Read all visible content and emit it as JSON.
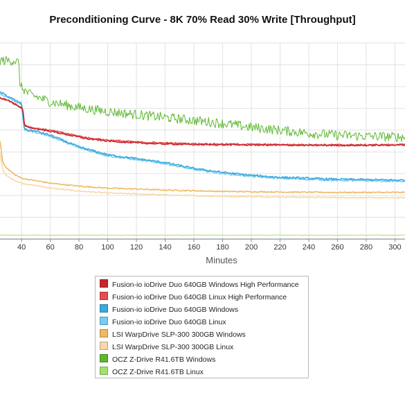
{
  "chart_data": {
    "type": "line",
    "title": "Preconditioning Curve - 8K 70% Read 30% Write [Throughput]",
    "xlabel": "Minutes",
    "ylabel": "",
    "xlim": [
      25,
      307
    ],
    "ylim": [
      0,
      100
    ],
    "x_ticks": [
      "40",
      "60",
      "80",
      "100",
      "120",
      "140",
      "160",
      "180",
      "200",
      "220",
      "240",
      "260",
      "280",
      "300"
    ],
    "grid": true,
    "legend_position": "bottom",
    "series": [
      {
        "name": "Fusion-io ioDrive Duo 640GB Windows High Performance",
        "color": "#c8282d",
        "noise": 0.4,
        "points": [
          [
            25,
            72
          ],
          [
            30,
            71
          ],
          [
            35,
            69
          ],
          [
            40,
            67
          ],
          [
            41,
            66
          ],
          [
            42,
            58
          ],
          [
            45,
            57
          ],
          [
            60,
            55
          ],
          [
            80,
            52
          ],
          [
            87,
            51
          ],
          [
            100,
            50
          ],
          [
            120,
            49
          ],
          [
            140,
            48.5
          ],
          [
            160,
            48.2
          ],
          [
            200,
            48
          ],
          [
            240,
            47.8
          ],
          [
            280,
            47.8
          ],
          [
            307,
            48
          ]
        ]
      },
      {
        "name": "Fusion-io ioDrive Duo 640GB Linux High Performance",
        "color": "#e84c4c",
        "noise": 0.4,
        "points": [
          [
            25,
            72
          ],
          [
            30,
            71
          ],
          [
            35,
            69
          ],
          [
            40,
            67
          ],
          [
            41,
            66
          ],
          [
            42,
            58
          ],
          [
            45,
            57
          ],
          [
            60,
            55.5
          ],
          [
            80,
            52.5
          ],
          [
            87,
            51.5
          ],
          [
            100,
            50.5
          ],
          [
            120,
            49.5
          ],
          [
            140,
            49
          ],
          [
            160,
            48.6
          ],
          [
            200,
            48.3
          ],
          [
            240,
            48.1
          ],
          [
            280,
            48
          ],
          [
            307,
            48.2
          ]
        ]
      },
      {
        "name": "Fusion-io ioDrive Duo 640GB Windows",
        "color": "#3ba8e0",
        "noise": 0.5,
        "points": [
          [
            25,
            75
          ],
          [
            30,
            73
          ],
          [
            35,
            71
          ],
          [
            40,
            69
          ],
          [
            42,
            56
          ],
          [
            50,
            55
          ],
          [
            60,
            53
          ],
          [
            80,
            47
          ],
          [
            100,
            43
          ],
          [
            120,
            41
          ],
          [
            140,
            39
          ],
          [
            160,
            36
          ],
          [
            180,
            34
          ],
          [
            200,
            32.5
          ],
          [
            220,
            31.5
          ],
          [
            240,
            31
          ],
          [
            260,
            30.5
          ],
          [
            280,
            30.3
          ],
          [
            307,
            30
          ]
        ]
      },
      {
        "name": "Fusion-io ioDrive Duo 640GB Linux",
        "color": "#74cdf3",
        "noise": 0.5,
        "points": [
          [
            25,
            74
          ],
          [
            30,
            72.5
          ],
          [
            35,
            70.5
          ],
          [
            40,
            68.5
          ],
          [
            42,
            55.5
          ],
          [
            50,
            54.5
          ],
          [
            60,
            52.5
          ],
          [
            80,
            46.5
          ],
          [
            100,
            42.5
          ],
          [
            120,
            40.5
          ],
          [
            140,
            38.5
          ],
          [
            160,
            35.5
          ],
          [
            180,
            33.5
          ],
          [
            200,
            32
          ],
          [
            220,
            31
          ],
          [
            240,
            30.5
          ],
          [
            260,
            30
          ],
          [
            280,
            29.8
          ],
          [
            307,
            29.5
          ]
        ]
      },
      {
        "name": "LSI WarpDrive SLP-300 300GB Windows",
        "color": "#f0b865",
        "noise": 0.3,
        "points": [
          [
            25,
            50
          ],
          [
            27,
            39
          ],
          [
            30,
            36
          ],
          [
            35,
            33
          ],
          [
            40,
            31
          ],
          [
            60,
            28.5
          ],
          [
            80,
            27
          ],
          [
            100,
            26
          ],
          [
            140,
            25
          ],
          [
            180,
            24.3
          ],
          [
            220,
            24
          ],
          [
            260,
            23.8
          ],
          [
            307,
            23.8
          ]
        ]
      },
      {
        "name": "LSI WarpDrive SLP-300 300GB Linux",
        "color": "#f8d8a8",
        "noise": 0.3,
        "points": [
          [
            25,
            44
          ],
          [
            27,
            35
          ],
          [
            30,
            32
          ],
          [
            35,
            30
          ],
          [
            40,
            28.5
          ],
          [
            60,
            26
          ],
          [
            80,
            24.5
          ],
          [
            100,
            23.5
          ],
          [
            140,
            22.5
          ],
          [
            180,
            21.8
          ],
          [
            220,
            21.5
          ],
          [
            260,
            21.2
          ],
          [
            307,
            21
          ]
        ]
      },
      {
        "name": "OCZ Z-Drive R41.6TB Windows",
        "color": "#5cb82e",
        "noise": 2.5,
        "points": [
          [
            25,
            91
          ],
          [
            30,
            91
          ],
          [
            35,
            91
          ],
          [
            38,
            90
          ],
          [
            39,
            78
          ],
          [
            45,
            74
          ],
          [
            60,
            70
          ],
          [
            80,
            67
          ],
          [
            100,
            65
          ],
          [
            120,
            63.5
          ],
          [
            140,
            62
          ],
          [
            160,
            60.5
          ],
          [
            180,
            59
          ],
          [
            200,
            57
          ],
          [
            220,
            55.5
          ],
          [
            240,
            54
          ],
          [
            260,
            53
          ],
          [
            280,
            52.5
          ],
          [
            307,
            52
          ]
        ]
      },
      {
        "name": "OCZ Z-Drive R41.6TB Linux",
        "color": "#a4e06e",
        "noise": 0.15,
        "points": [
          [
            25,
            2
          ],
          [
            307,
            2
          ]
        ]
      }
    ]
  }
}
